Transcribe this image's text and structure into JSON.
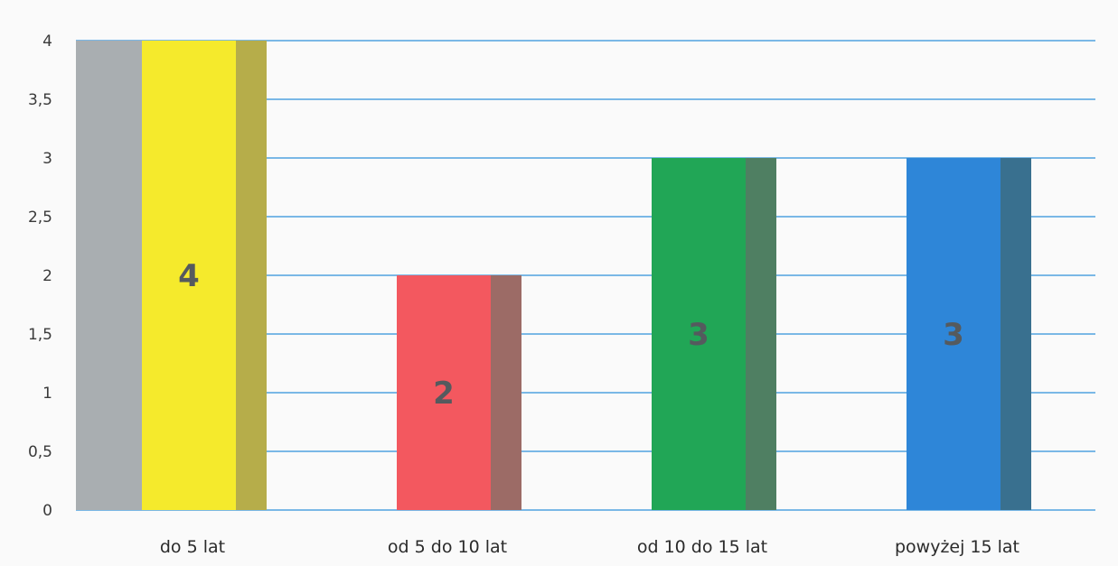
{
  "chart_data": {
    "type": "bar",
    "categories": [
      "do 5 lat",
      "od 5 do 10 lat",
      "od 10 do 15 lat",
      "powyżej 15 lat"
    ],
    "values": [
      4,
      2,
      3,
      3
    ],
    "data_labels": [
      "4",
      "2",
      "3",
      "3"
    ],
    "ylim": [
      0,
      4
    ],
    "yticks": [
      0,
      0.5,
      1,
      1.5,
      2,
      2.5,
      3,
      3.5,
      4
    ],
    "ytick_labels": [
      "0",
      "0,5",
      "1",
      "1,5",
      "2",
      "2,5",
      "3",
      "3,5",
      "4"
    ],
    "bar_colors": [
      "#f5ea2c",
      "#f3585f",
      "#21a656",
      "#2e86d8"
    ],
    "bar_side_colors": [
      "#b6ad4a",
      "#9c6b66",
      "#4f7f62",
      "#39708f"
    ],
    "gridline_color": "#7ab8e6",
    "grid": true,
    "title": "",
    "xlabel": "",
    "ylabel": ""
  }
}
